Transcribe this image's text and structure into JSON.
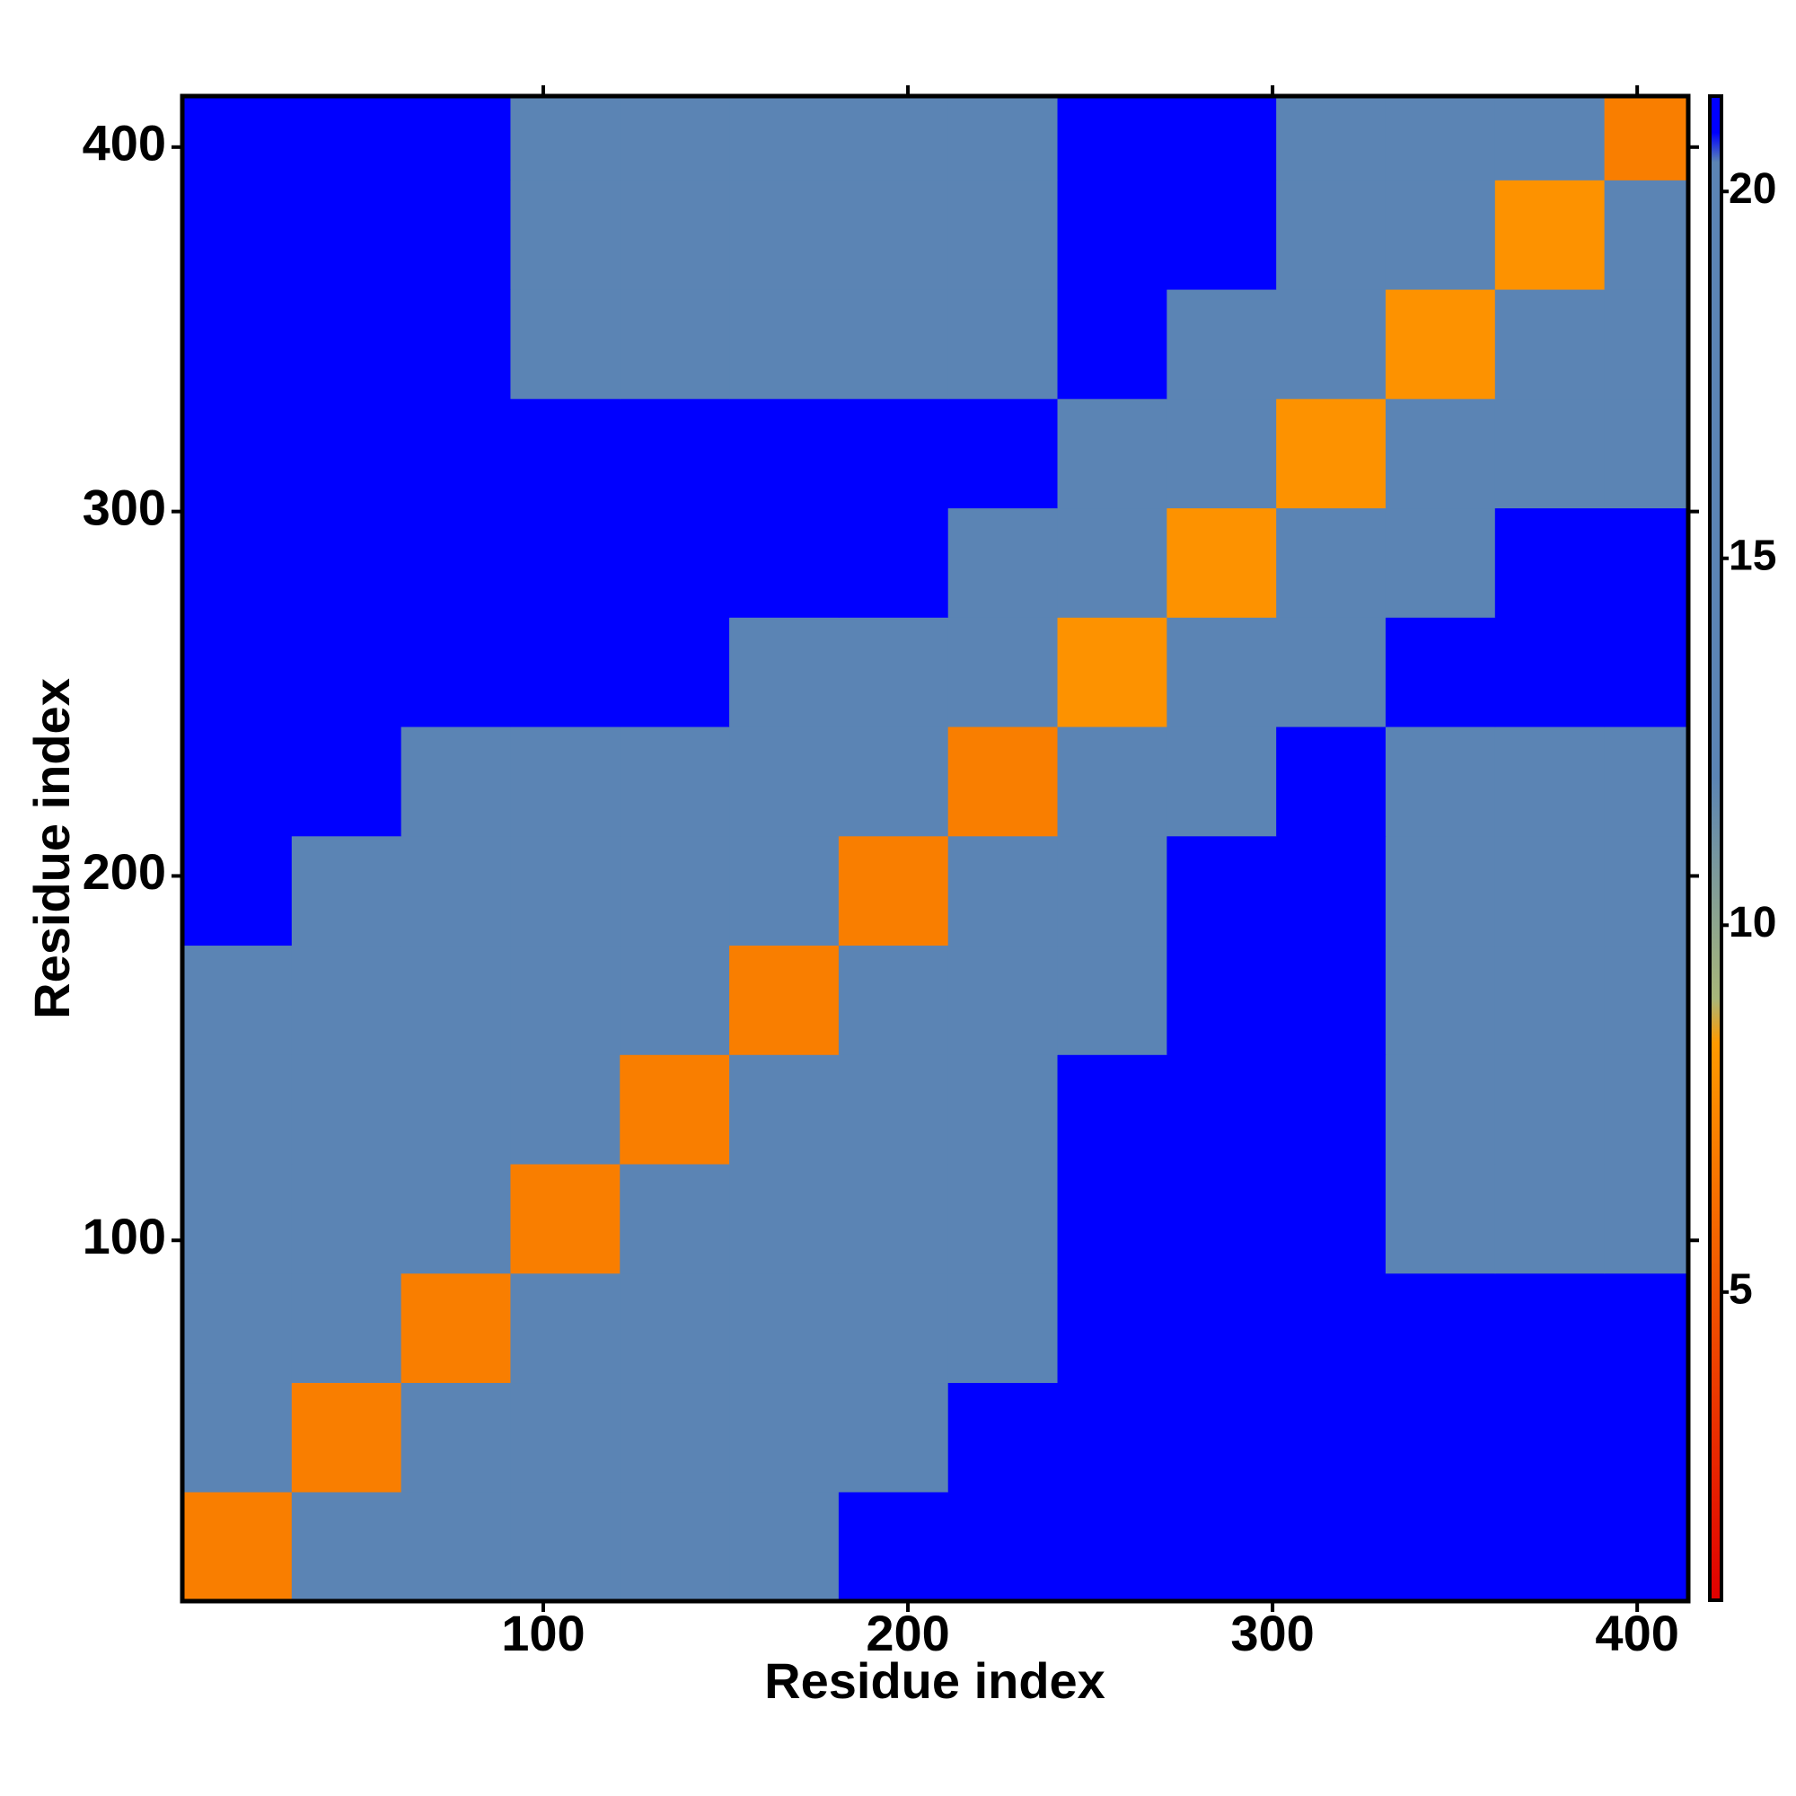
{
  "chart_data": {
    "type": "heatmap",
    "x_label": "Residue index",
    "y_label": "Residue index",
    "bins": [
      1,
      31,
      61,
      91,
      121,
      151,
      181,
      211,
      241,
      271,
      301,
      331,
      361,
      391,
      414
    ],
    "xlim": [
      1,
      414
    ],
    "ylim": [
      1,
      414
    ],
    "xticks": [
      100,
      200,
      300,
      400
    ],
    "yticks": [
      100,
      200,
      300,
      400
    ],
    "zlim": [
      0.8,
      21.3
    ],
    "zticks": [
      5,
      10,
      15,
      20
    ],
    "colorscale": [
      [
        0.8,
        "#e00000"
      ],
      [
        8.4,
        "#ff9a00"
      ],
      [
        9.0,
        "#a8b67a"
      ],
      [
        12.0,
        "#5b84b4"
      ],
      [
        20.4,
        "#5b84b4"
      ],
      [
        20.8,
        "#0000ff"
      ],
      [
        21.3,
        "#0000ff"
      ]
    ],
    "values": [
      [
        7,
        15,
        17,
        18,
        19,
        20,
        21,
        22,
        23,
        23,
        23,
        23,
        22,
        21
      ],
      [
        15,
        7,
        15,
        16,
        17,
        18,
        19,
        21,
        22,
        23,
        23,
        22,
        22,
        22
      ],
      [
        17,
        15,
        7,
        15,
        16,
        17,
        18,
        19,
        22,
        23,
        23,
        21,
        21,
        22
      ],
      [
        18,
        16,
        15,
        7,
        15,
        16,
        17,
        19,
        21,
        22,
        22,
        19,
        18,
        20
      ],
      [
        19,
        17,
        16,
        15,
        7,
        15,
        16,
        18,
        21,
        22,
        22,
        20,
        18,
        19
      ],
      [
        20,
        18,
        17,
        16,
        15,
        7,
        15,
        16,
        20,
        22,
        22,
        19,
        17,
        18
      ],
      [
        21,
        19,
        18,
        17,
        16,
        15,
        7,
        15,
        18,
        22,
        21,
        18,
        16,
        17
      ],
      [
        22,
        21,
        19,
        19,
        18,
        16,
        15,
        7,
        15,
        19,
        21,
        20,
        18,
        18
      ],
      [
        23,
        22,
        22,
        21,
        21,
        20,
        18,
        15,
        8,
        15,
        20,
        21,
        21,
        21
      ],
      [
        23,
        23,
        23,
        22,
        22,
        22,
        22,
        19,
        15,
        8,
        15,
        19,
        21,
        22
      ],
      [
        23,
        23,
        23,
        22,
        22,
        22,
        21,
        21,
        20,
        15,
        8,
        15,
        19,
        20
      ],
      [
        23,
        22,
        21,
        19,
        20,
        19,
        18,
        20,
        21,
        19,
        15,
        8,
        15,
        16
      ],
      [
        22,
        22,
        21,
        18,
        18,
        17,
        16,
        18,
        21,
        21,
        19,
        15,
        8,
        15
      ],
      [
        21,
        22,
        22,
        20,
        19,
        18,
        17,
        18,
        21,
        22,
        20,
        16,
        15,
        7
      ]
    ]
  }
}
